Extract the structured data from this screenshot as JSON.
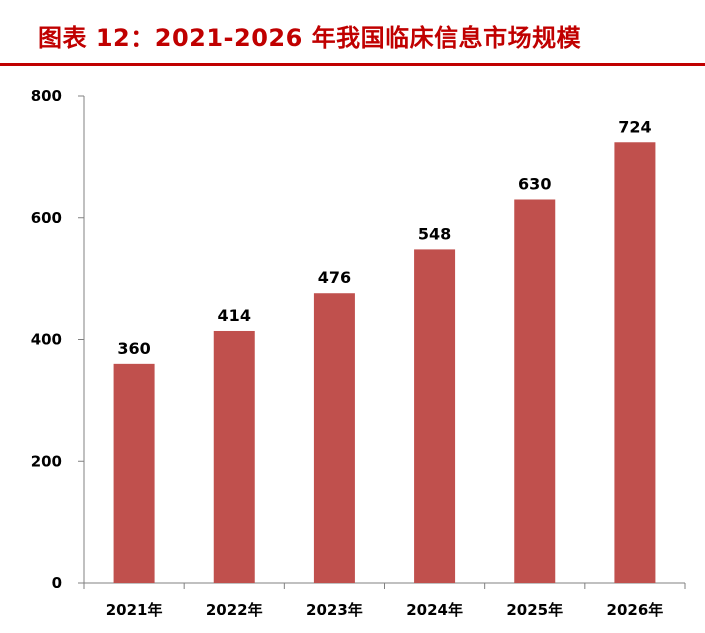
{
  "header": {
    "title": "图表 12：2021-2026 年我国临床信息市场规模"
  },
  "colors": {
    "title": "#c00000",
    "bar": "#c0504d",
    "axis": "#808080"
  },
  "chart_data": {
    "type": "bar",
    "title": "",
    "xlabel": "",
    "ylabel": "",
    "categories": [
      "2021年",
      "2022年",
      "2023年",
      "2024年",
      "2025年",
      "2026年"
    ],
    "values": [
      360,
      414,
      476,
      548,
      630,
      724
    ],
    "ylim": [
      0,
      800
    ],
    "yticks": [
      0,
      200,
      400,
      600,
      800
    ],
    "grid": false,
    "legend": "none",
    "data_labels": true
  }
}
